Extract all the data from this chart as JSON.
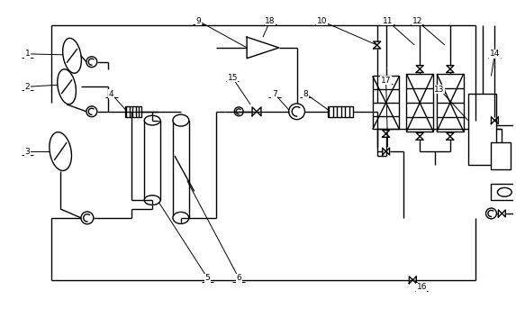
{
  "bg_color": "#ffffff",
  "line_color": "#000000",
  "lw": 1.0,
  "fig_width": 5.73,
  "fig_height": 3.43
}
